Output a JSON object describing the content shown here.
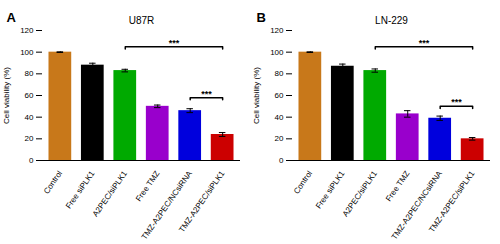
{
  "chart_data": [
    {
      "type": "bar",
      "title": "U87R",
      "panel_label": "A",
      "categories": [
        "Control",
        "Free siPLK1",
        "A2PEC/siPLK1",
        "Free TMZ",
        "TMZ-A2PEC/NCsiRNA",
        "TMZ-A2PEC/siPLK1"
      ],
      "values": [
        100,
        88,
        83,
        50,
        46,
        24
      ],
      "errors": [
        0.3,
        1.8,
        1.2,
        1.2,
        1.8,
        1.8
      ],
      "colors": [
        "#c8781a",
        "#000000",
        "#00aa00",
        "#9900cc",
        "#0000dd",
        "#cc0000"
      ],
      "ylabel": "Cell viability (%)",
      "ylim": [
        0,
        120
      ],
      "yticks": [
        0,
        20,
        40,
        60,
        80,
        100,
        120
      ],
      "grid": false,
      "annotations": [
        {
          "text": "***",
          "x1": "A2PEC/siPLK1",
          "x2": "TMZ-A2PEC/siPLK1",
          "y": 105,
          "drop": 2
        },
        {
          "text": "***",
          "x1": "TMZ-A2PEC/NCsiRNA",
          "x2": "TMZ-A2PEC/siPLK1",
          "y": 58,
          "drop": 2
        }
      ]
    },
    {
      "type": "bar",
      "title": "LN-229",
      "panel_label": "B",
      "categories": [
        "Control",
        "Free siPLK1",
        "A2PEC/siPLK1",
        "Free TMZ",
        "TMZ-A2PEC/NCsiRNA",
        "TMZ-A2PEC/siPLK1"
      ],
      "values": [
        100,
        87,
        83,
        43,
        39,
        20
      ],
      "errors": [
        0.3,
        2.0,
        1.5,
        3.0,
        2.0,
        1.2
      ],
      "colors": [
        "#c8781a",
        "#000000",
        "#00aa00",
        "#9900cc",
        "#0000dd",
        "#cc0000"
      ],
      "ylabel": "Cell viability (%)",
      "ylim": [
        0,
        120
      ],
      "yticks": [
        0,
        20,
        40,
        60,
        80,
        100,
        120
      ],
      "grid": false,
      "annotations": [
        {
          "text": "***",
          "x1": "A2PEC/siPLK1",
          "x2": "TMZ-A2PEC/siPLK1",
          "y": 105,
          "drop": 2
        },
        {
          "text": "***",
          "x1": "TMZ-A2PEC/NCsiRNA",
          "x2": "TMZ-A2PEC/siPLK1",
          "y": 50,
          "drop": 2
        }
      ]
    }
  ]
}
